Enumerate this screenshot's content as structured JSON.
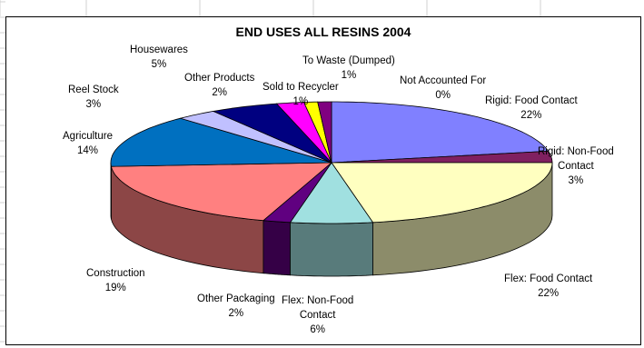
{
  "chart_data": {
    "type": "pie",
    "title": "END USES ALL RESINS 2004",
    "slices": [
      {
        "name": "Rigid: Food Contact",
        "value": 22,
        "label": "22%",
        "color": "#8080FF"
      },
      {
        "name": "Rigid: Non-Food Contact",
        "value": 3,
        "label": "3%",
        "color": "#802060"
      },
      {
        "name": "Flex:  Food Contact",
        "value": 22,
        "label": "22%",
        "color": "#FFFFC0"
      },
      {
        "name": "Flex: Non-Food Contact",
        "value": 6,
        "label": "6%",
        "color": "#A0E0E0"
      },
      {
        "name": "Other Packaging",
        "value": 2,
        "label": "2%",
        "color": "#600080"
      },
      {
        "name": "Construction",
        "value": 19,
        "label": "19%",
        "color": "#FF8080"
      },
      {
        "name": "Agriculture",
        "value": 14,
        "label": "14%",
        "color": "#0070C0"
      },
      {
        "name": "Reel Stock",
        "value": 3,
        "label": "3%",
        "color": "#C0C0FF"
      },
      {
        "name": "Housewares",
        "value": 5,
        "label": "5%",
        "color": "#000080"
      },
      {
        "name": "Other Products",
        "value": 2,
        "label": "2%",
        "color": "#FF00FF"
      },
      {
        "name": "Sold to Recycler",
        "value": 1,
        "label": "1%",
        "color": "#FFFF00"
      },
      {
        "name": "To Waste (Dumped)",
        "value": 1,
        "label": "1%",
        "color": "#800080"
      },
      {
        "name": "Not Accounted For",
        "value": 0,
        "label": "0%",
        "color": "#00FFFF"
      }
    ],
    "legend": "none"
  }
}
